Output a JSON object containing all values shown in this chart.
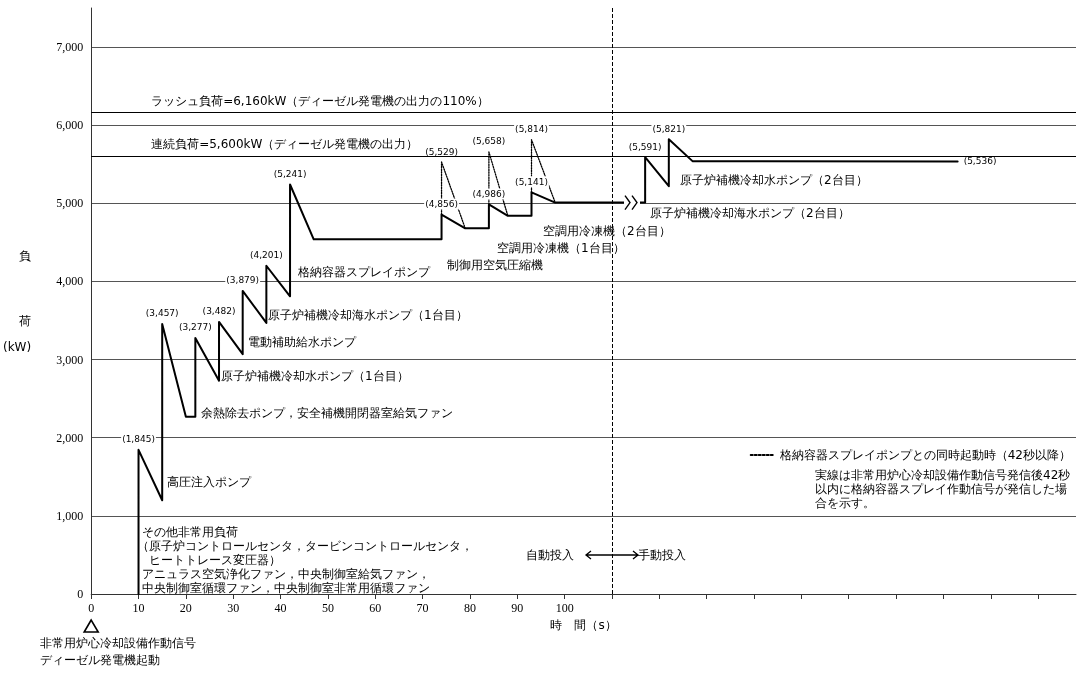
{
  "chart_data": {
    "type": "line",
    "xlabel": "時　間（s）",
    "ylabel": "負荷(kW)",
    "xlim": [
      0,
      208
    ],
    "xticks": [
      0,
      10,
      20,
      30,
      40,
      50,
      60,
      70,
      80,
      90,
      100,
      {
        "value": 110,
        "label": null
      },
      {
        "value": 120,
        "label": null
      },
      {
        "value": 130,
        "label": null
      },
      {
        "value": 140,
        "label": null
      },
      {
        "value": 150,
        "label": null
      },
      {
        "value": 160,
        "label": null
      },
      {
        "value": 170,
        "label": null
      },
      {
        "value": 180,
        "label": null
      },
      {
        "value": 190,
        "label": null
      },
      {
        "value": 200,
        "label": null
      }
    ],
    "ylim": [
      0,
      7500
    ],
    "yticks": [
      0,
      {
        "value": 1000,
        "label": "1,000"
      },
      {
        "value": 2000,
        "label": "2,000"
      },
      {
        "value": 3000,
        "label": "3,000"
      },
      {
        "value": 4000,
        "label": "4,000"
      },
      {
        "value": 5000,
        "label": "5,000"
      },
      {
        "value": 6000,
        "label": "6,000"
      },
      {
        "value": 7000,
        "label": "7,000"
      }
    ],
    "grid": "y",
    "legend": "bottom right",
    "marker": "none",
    "series": [
      {
        "color": "#000000",
        "line_style": "solid",
        "x": [
          10,
          10,
          15,
          15,
          20,
          22,
          22,
          27,
          27,
          32,
          32,
          37,
          37,
          42,
          42,
          47,
          74,
          74,
          79,
          84,
          84,
          88,
          93,
          93,
          98,
          117,
          117,
          122,
          122,
          127,
          183
        ],
        "values": [
          0,
          1845,
          1200,
          3457,
          2270,
          2270,
          3277,
          2730,
          3482,
          3070,
          3879,
          3470,
          4201,
          3810,
          5241,
          4540,
          4540,
          4856,
          4680,
          4680,
          4986,
          4840,
          4840,
          5141,
          5010,
          5010,
          5591,
          5220,
          5821,
          5540,
          5536
        ],
        "value_labels": [
          null,
          "(1,845)",
          null,
          "(3,457)",
          null,
          null,
          "(3,277)",
          null,
          "(3,482)",
          null,
          "(3,879)",
          null,
          "(4,201)",
          null,
          "(5,241)",
          null,
          null,
          "(4,856)",
          null,
          null,
          "(4,986)",
          null,
          null,
          "(5,141)",
          null,
          null,
          "(5,591)",
          null,
          "(5,821)",
          null,
          "(5,536)"
        ]
      },
      {
        "name": "格納容器スプレイポンプとの同時起動時（42秒以降）",
        "color": "#000000",
        "line_style": "dotted",
        "x": [
          74,
          74,
          79
        ],
        "values": [
          4856,
          5529,
          4680
        ],
        "value_labels": [
          null,
          "(5,529)",
          null
        ]
      },
      {
        "color": "#000000",
        "line_style": "dotted",
        "x": [
          84,
          84,
          88
        ],
        "values": [
          4986,
          5658,
          4840
        ],
        "value_labels": [
          null,
          "(5,658)",
          null
        ]
      },
      {
        "color": "#000000",
        "line_style": "dotted",
        "x": [
          93,
          93,
          98
        ],
        "values": [
          5141,
          5814,
          5010
        ],
        "value_labels": [
          null,
          "(5,814)",
          null
        ]
      }
    ],
    "ref_lines": [
      {
        "axis": "y",
        "value": 6160,
        "label": "ラッシュ負荷=6,160kW（ディーゼル発電機の出力の110%）",
        "color": "#000000"
      },
      {
        "axis": "y",
        "value": 5600,
        "label": "連続負荷=5,600kW（ディーゼル発電機の出力）",
        "color": "#000000"
      },
      {
        "axis": "x",
        "value": 110,
        "line_style": "dashed",
        "color": "#000000"
      }
    ],
    "annotations": [
      "高圧注入ポンプ",
      "その他非常用負荷",
      "（原子炉コントロールセンタ，タービンコントロールセンタ，",
      "　ヒートトレース変圧器）",
      "アニュラス空気浄化ファン，中央制御室給気ファン，",
      "中央制御室循環ファン，中央制御室非常用循環ファン",
      "余熱除去ポンプ，安全補機開閉器室給気ファン",
      "原子炉補機冷却水ポンプ（1台目）",
      "電動補助給水ポンプ",
      "原子炉補機冷却海水ポンプ（1台目）",
      "格納容器スプレイポンプ",
      "制御用空気圧縮機",
      "空調用冷凍機（1台目）",
      "空調用冷凍機（2台目）",
      "原子炉補機冷却海水ポンプ（2台目）",
      "原子炉補機冷却水ポンプ（2台目）",
      "自動投入",
      "手動投入",
      "非常用炉心冷却設備作動信号",
      "ディーゼル発電機起動",
      "実線は非常用炉心冷却設備作動信号発信後42秒以内に格納容器スプレイ作動信号が発信した場合を示す。"
    ]
  }
}
